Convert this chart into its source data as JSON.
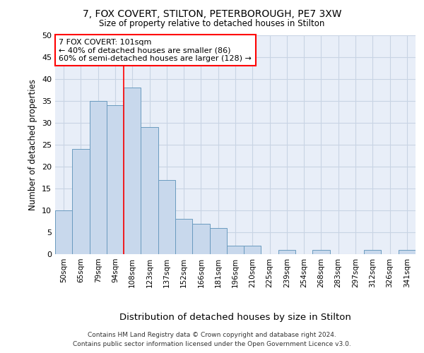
{
  "title1": "7, FOX COVERT, STILTON, PETERBOROUGH, PE7 3XW",
  "title2": "Size of property relative to detached houses in Stilton",
  "xlabel": "Distribution of detached houses by size in Stilton",
  "ylabel": "Number of detached properties",
  "categories": [
    "50sqm",
    "65sqm",
    "79sqm",
    "94sqm",
    "108sqm",
    "123sqm",
    "137sqm",
    "152sqm",
    "166sqm",
    "181sqm",
    "196sqm",
    "210sqm",
    "225sqm",
    "239sqm",
    "254sqm",
    "268sqm",
    "283sqm",
    "297sqm",
    "312sqm",
    "326sqm",
    "341sqm"
  ],
  "values": [
    10,
    24,
    35,
    34,
    38,
    29,
    17,
    8,
    7,
    6,
    2,
    2,
    0,
    1,
    0,
    1,
    0,
    0,
    1,
    0,
    1
  ],
  "bar_color": "#c8d8ec",
  "bar_edge_color": "#6a9bbf",
  "red_line_x": 3.5,
  "annotation_text": "7 FOX COVERT: 101sqm\n← 40% of detached houses are smaller (86)\n60% of semi-detached houses are larger (128) →",
  "annotation_box_color": "white",
  "annotation_box_edge_color": "red",
  "ylim": [
    0,
    50
  ],
  "yticks": [
    0,
    5,
    10,
    15,
    20,
    25,
    30,
    35,
    40,
    45,
    50
  ],
  "grid_color": "#c8d4e4",
  "background_color": "#e8eef8",
  "footer1": "Contains HM Land Registry data © Crown copyright and database right 2024.",
  "footer2": "Contains public sector information licensed under the Open Government Licence v3.0."
}
